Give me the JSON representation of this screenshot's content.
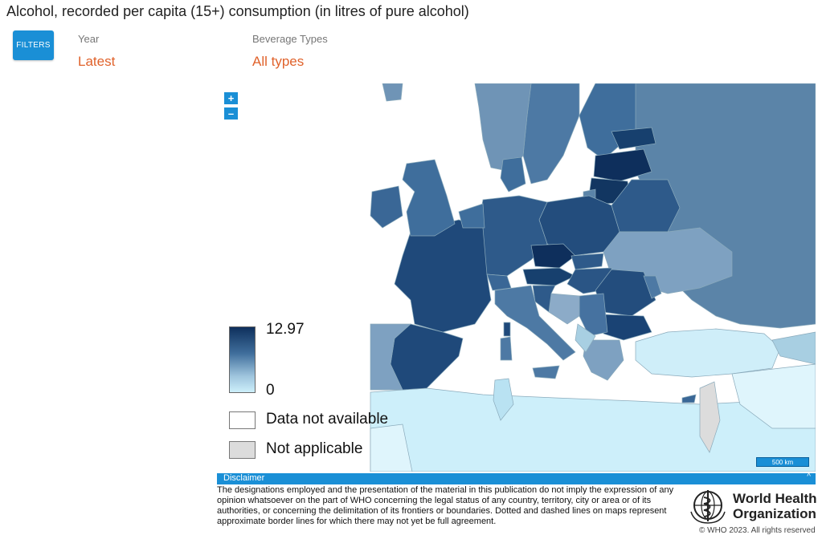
{
  "header": {
    "title": "Alcohol, recorded per capita (15+) consumption (in litres of pure alcohol)"
  },
  "filters": {
    "button_label": "FILTERS",
    "year": {
      "label": "Year",
      "value": "Latest"
    },
    "beverage": {
      "label": "Beverage Types",
      "value": "All types"
    }
  },
  "zoom": {
    "in_label": "+",
    "out_label": "–"
  },
  "legend": {
    "max_value": "12.97",
    "min_value": "0",
    "color_high": "#0e2f5c",
    "color_low": "#cdeffa",
    "no_data_label": "Data not available",
    "no_data_color": "#ffffff",
    "not_applicable_label": "Not applicable",
    "not_applicable_color": "#dcdcdc"
  },
  "scale_bar": {
    "label": "500 km"
  },
  "disclaimer": {
    "title": "Disclaimer",
    "toggle": "^",
    "text": "The designations employed and the presentation of the material in this publication do not imply the expression of any opinion whatsoever on the part of WHO concerning the legal status of any country, territory, city or area or of its authorities, or concerning the delimitation of its frontiers or boundaries. Dotted and dashed lines on maps represent approximate border lines for which there may not yet be full agreement."
  },
  "who": {
    "name": "World Health\nOrganization",
    "copyright": "© WHO 2023. All rights reserved"
  },
  "colors": {
    "accent": "#1a8fd6",
    "filter_value": "#e0622b"
  }
}
